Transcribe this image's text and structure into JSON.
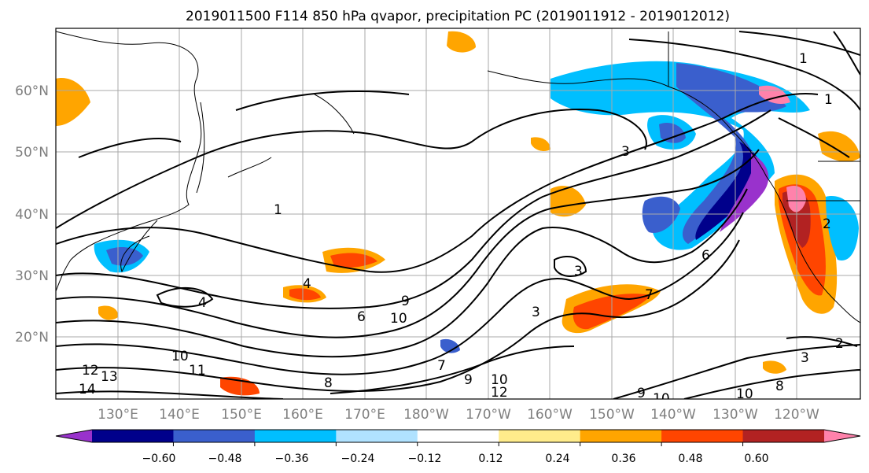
{
  "title": "2019011500 F114 850 hPa qvapor, precipitation PC (2019011912 - 2019012012)",
  "map": {
    "lat_labels": [
      "60°N",
      "50°N",
      "40°N",
      "30°N",
      "20°N"
    ],
    "lon_labels": [
      "130°E",
      "140°E",
      "150°E",
      "160°E",
      "170°E",
      "180°W",
      "170°W",
      "160°W",
      "150°W",
      "140°W",
      "130°W",
      "120°W"
    ],
    "contour_labels": [
      "1",
      "1",
      "3",
      "1",
      "3",
      "4",
      "4",
      "2",
      "3",
      "6",
      "6",
      "9",
      "10",
      "7",
      "10",
      "11",
      "13",
      "14",
      "12",
      "8",
      "9",
      "10",
      "12",
      "7",
      "9",
      "10",
      "10",
      "8",
      "2",
      "3"
    ]
  },
  "colorbar": {
    "ticks": [
      "−0.60",
      "−0.48",
      "−0.36",
      "−0.24",
      "−0.12",
      "0.12",
      "0.24",
      "0.36",
      "0.48",
      "0.60"
    ],
    "colors": [
      "#9932cc",
      "#00008b",
      "#3a5fcd",
      "#00bfff",
      "#b0e2ff",
      "#ffffff",
      "#ffec8b",
      "#ffa500",
      "#ff4500",
      "#b22222",
      "#ff82ab"
    ]
  }
}
